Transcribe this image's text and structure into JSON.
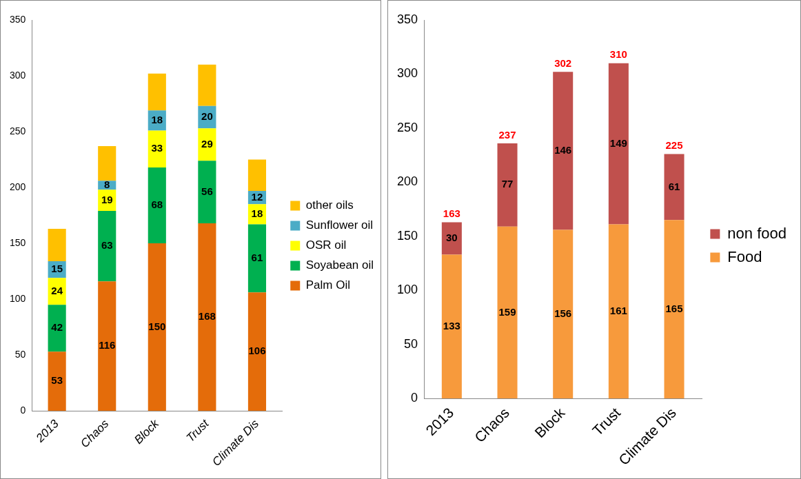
{
  "chart_data": [
    {
      "type": "bar",
      "stacked": true,
      "categories": [
        "2013",
        "Chaos",
        "Block",
        "Trust",
        "Climate Dis"
      ],
      "ylim": [
        0,
        350
      ],
      "yticks": [
        0,
        50,
        100,
        150,
        200,
        250,
        300,
        350
      ],
      "grid": false,
      "legend": "right",
      "series": [
        {
          "name": "Palm Oil",
          "color": "#e46c0a",
          "values": [
            53,
            116,
            150,
            168,
            106
          ],
          "value_labels": [
            "53",
            "116",
            "150",
            "168",
            "106"
          ]
        },
        {
          "name": "Soyabean oil",
          "color": "#00b050",
          "values": [
            42,
            63,
            68,
            56,
            61
          ],
          "value_labels": [
            "42",
            "63",
            "68",
            "56",
            "61"
          ]
        },
        {
          "name": "OSR oil",
          "color": "#ffff00",
          "values": [
            24,
            19,
            33,
            29,
            18
          ],
          "value_labels": [
            "24",
            "19",
            "33",
            "29",
            "18"
          ]
        },
        {
          "name": "Sunflower oil",
          "color": "#4bacc6",
          "values": [
            15,
            8,
            18,
            20,
            12
          ],
          "value_labels": [
            "15",
            "8",
            "18",
            "20",
            "12"
          ]
        },
        {
          "name": "other oils",
          "color": "#ffc000",
          "values": [
            29,
            31,
            33,
            37,
            28
          ]
        }
      ]
    },
    {
      "type": "bar",
      "stacked": true,
      "categories": [
        "2013",
        "Chaos",
        "Block",
        "Trust",
        "Climate Dis"
      ],
      "ylim": [
        0,
        350
      ],
      "yticks": [
        0,
        50,
        100,
        150,
        200,
        250,
        300,
        350
      ],
      "grid": false,
      "legend": "right",
      "data_labels": true,
      "totals": [
        "163",
        "237",
        "302",
        "310",
        "225"
      ],
      "series": [
        {
          "name": "Food",
          "color": "#f79a3c",
          "values": [
            133,
            159,
            156,
            161,
            165
          ]
        },
        {
          "name": "non food",
          "color": "#c0504d",
          "values": [
            30,
            77,
            146,
            149,
            61
          ]
        }
      ]
    }
  ]
}
